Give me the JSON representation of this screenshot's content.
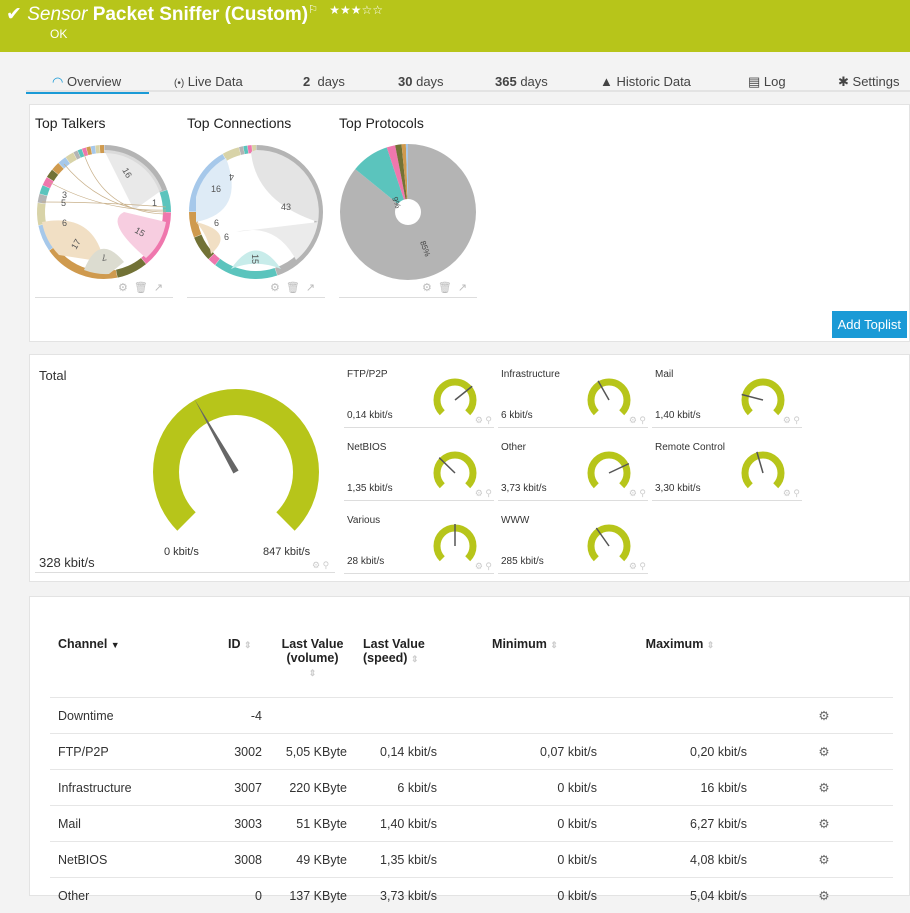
{
  "header": {
    "prefix": "Sensor",
    "title": "Packet Sniffer (Custom)",
    "status": "OK",
    "stars": "★★★☆☆",
    "flag": "⚐",
    "check": "✔",
    "color": "#b7c51a"
  },
  "tabs": [
    {
      "icon": "◠",
      "label": "Overview"
    },
    {
      "icon": "(•)",
      "label": "Live Data"
    },
    {
      "num": "2",
      "label": "days"
    },
    {
      "num": "30",
      "label": "days"
    },
    {
      "num": "365",
      "label": "days"
    },
    {
      "icon": "▲",
      "label": "Historic Data"
    },
    {
      "icon": "▤",
      "label": "Log"
    },
    {
      "icon": "✱",
      "label": "Settings"
    }
  ],
  "toplists": {
    "titles": [
      "Top Talkers",
      "Top Connections",
      "Top Protocols"
    ],
    "talkers_labels": [
      "16",
      "1",
      "15",
      "7",
      "17",
      "6",
      "5",
      "3"
    ],
    "connections_labels": [
      "43",
      "15",
      "6",
      "6",
      "16",
      "4"
    ],
    "protocols": [
      {
        "label": "85%",
        "value": 85,
        "color": "#b4b4b4"
      },
      {
        "label": "9%",
        "value": 9,
        "color": "#5bc4bd"
      },
      {
        "label": "",
        "value": 2,
        "color": "#ef77ad"
      },
      {
        "label": "",
        "value": 1.5,
        "color": "#727236"
      },
      {
        "label": "",
        "value": 1,
        "color": "#cf9a4e"
      },
      {
        "label": "",
        "value": 0.5,
        "color": "#a6c8ea"
      }
    ],
    "add_button": "Add Toplist"
  },
  "total": {
    "title": "Total",
    "value": "328 kbit/s",
    "min": "0 kbit/s",
    "max": "847 kbit/s",
    "level": 0.39,
    "color": "#b7c51a"
  },
  "gauges": [
    {
      "name": "FTP/P2P",
      "value": "0,14 kbit/s",
      "level": 0.69
    },
    {
      "name": "Infrastructure",
      "value": "6 kbit/s",
      "level": 0.39
    },
    {
      "name": "Mail",
      "value": "1,40 kbit/s",
      "level": 0.22
    },
    {
      "name": "NetBIOS",
      "value": "1,35 kbit/s",
      "level": 0.33
    },
    {
      "name": "Other",
      "value": "3,73 kbit/s",
      "level": 0.74
    },
    {
      "name": "Remote Control",
      "value": "3,30 kbit/s",
      "level": 0.44
    },
    {
      "name": "Various",
      "value": "28 kbit/s",
      "level": 0.5
    },
    {
      "name": "WWW",
      "value": "285 kbit/s",
      "level": 0.37
    }
  ],
  "table": {
    "headers": [
      "Channel",
      "ID",
      "Last Value (volume)",
      "Last Value (speed)",
      "Minimum",
      "Maximum"
    ],
    "rows": [
      [
        "Downtime",
        "-4",
        "",
        "",
        "",
        ""
      ],
      [
        "FTP/P2P",
        "3002",
        "5,05 KByte",
        "0,14 kbit/s",
        "0,07 kbit/s",
        "0,20 kbit/s"
      ],
      [
        "Infrastructure",
        "3007",
        "220 KByte",
        "6 kbit/s",
        "0 kbit/s",
        "16 kbit/s"
      ],
      [
        "Mail",
        "3003",
        "51 KByte",
        "1,40 kbit/s",
        "0 kbit/s",
        "6,27 kbit/s"
      ],
      [
        "NetBIOS",
        "3008",
        "49 KByte",
        "1,35 kbit/s",
        "0 kbit/s",
        "4,08 kbit/s"
      ],
      [
        "Other",
        "0",
        "137 KByte",
        "3,73 kbit/s",
        "0 kbit/s",
        "5,04 kbit/s"
      ]
    ]
  }
}
